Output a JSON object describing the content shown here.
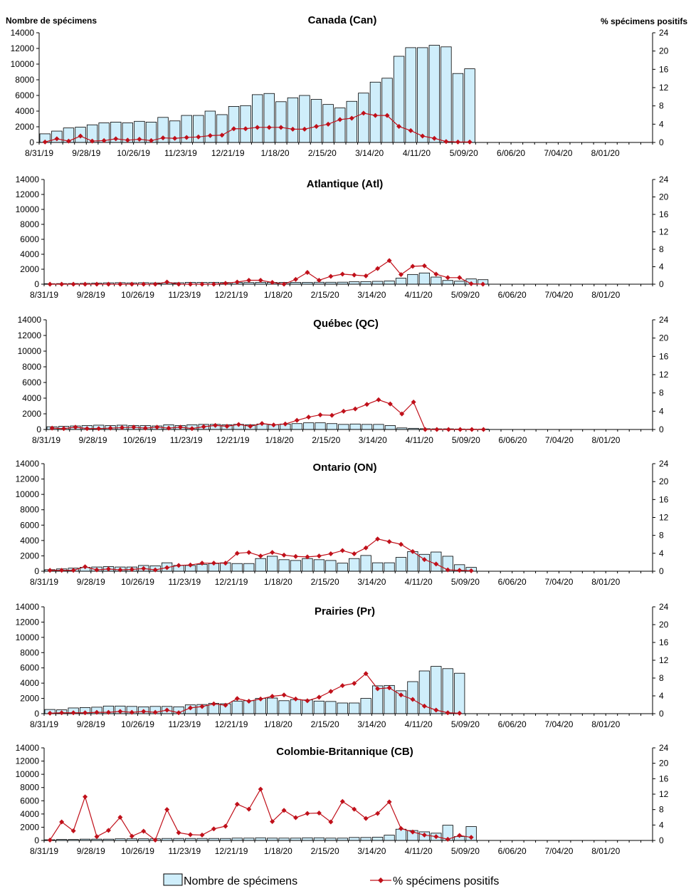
{
  "figure": {
    "left_axis_label": "Nombre de spécimens",
    "right_axis_label": "% spécimens positifs",
    "legend": {
      "bars": "Nombre de spécimens",
      "line": "% spécimens positifs"
    },
    "colors": {
      "bar_fill": "#cfeefb",
      "bar_stroke": "#000000",
      "line": "#c0101a",
      "axis": "#000000"
    }
  },
  "chart_data": [
    {
      "type": "bar",
      "title": "Canada (Can)",
      "x_tick_labels": [
        "8/31/19",
        "9/28/19",
        "10/26/19",
        "11/23/19",
        "12/21/19",
        "1/18/20",
        "2/15/20",
        "3/14/20",
        "4/11/20",
        "5/09/20",
        "6/06/20",
        "7/04/20",
        "8/01/20"
      ],
      "ylim": [
        0,
        14000
      ],
      "y_ticks": [
        0,
        2000,
        4000,
        6000,
        8000,
        10000,
        12000,
        14000
      ],
      "y2lim": [
        0,
        24
      ],
      "y2_ticks": [
        0,
        4,
        8,
        12,
        16,
        20,
        24
      ],
      "series": [
        {
          "name": "Nombre de spécimens",
          "values": [
            1100,
            1450,
            1850,
            1950,
            2250,
            2500,
            2600,
            2500,
            2700,
            2600,
            3200,
            2750,
            3450,
            3450,
            4000,
            3550,
            4600,
            4700,
            6100,
            6250,
            5200,
            5700,
            6000,
            5500,
            4850,
            4400,
            5250,
            6300,
            7700,
            8200,
            11000,
            12100,
            12100,
            12400,
            12200,
            8800,
            9400
          ]
        },
        {
          "name": "% spécimens positifs",
          "values": [
            0.1,
            0.8,
            0.3,
            1.4,
            0.3,
            0.4,
            0.8,
            0.5,
            0.7,
            0.4,
            1.0,
            0.9,
            1.1,
            1.2,
            1.5,
            1.6,
            3.0,
            3.0,
            3.3,
            3.3,
            3.3,
            2.9,
            2.9,
            3.5,
            4.0,
            5.0,
            5.3,
            6.4,
            5.9,
            5.9,
            3.5,
            2.6,
            1.4,
            0.9,
            0.2,
            0.1,
            0.1
          ]
        }
      ]
    },
    {
      "type": "bar",
      "title": "Atlantique (Atl)",
      "x_tick_labels": [
        "8/31/19",
        "9/28/19",
        "10/26/19",
        "11/23/19",
        "12/21/19",
        "1/18/20",
        "2/15/20",
        "3/14/20",
        "4/11/20",
        "5/09/20",
        "6/06/20",
        "7/04/20",
        "8/01/20"
      ],
      "ylim": [
        0,
        14000
      ],
      "y_ticks": [
        0,
        2000,
        4000,
        6000,
        8000,
        10000,
        12000,
        14000
      ],
      "y2lim": [
        0,
        24
      ],
      "y2_ticks": [
        0,
        4,
        8,
        12,
        16,
        20,
        24
      ],
      "series": [
        {
          "name": "Nombre de spécimens",
          "values": [
            60,
            80,
            90,
            110,
            150,
            180,
            200,
            170,
            200,
            170,
            210,
            190,
            250,
            230,
            250,
            220,
            250,
            220,
            250,
            230,
            240,
            250,
            250,
            260,
            260,
            270,
            320,
            350,
            380,
            430,
            800,
            1300,
            1500,
            950,
            500,
            400,
            700,
            600
          ]
        },
        {
          "name": "% spécimens positifs",
          "values": [
            0,
            0,
            0,
            0,
            0,
            0,
            0,
            0,
            0,
            0,
            0.5,
            0,
            0,
            0,
            0,
            0.2,
            0.5,
            0.9,
            0.9,
            0.4,
            0,
            1.1,
            2.7,
            0.9,
            1.8,
            2.3,
            2.1,
            1.9,
            3.6,
            5.4,
            2.2,
            4.1,
            4.2,
            2.3,
            1.5,
            1.5,
            0.1,
            0
          ]
        }
      ]
    },
    {
      "type": "bar",
      "title": "Québec (QC)",
      "x_tick_labels": [
        "8/31/19",
        "9/28/19",
        "10/26/19",
        "11/23/19",
        "12/21/19",
        "1/18/20",
        "2/15/20",
        "3/14/20",
        "4/11/20",
        "5/09/20",
        "6/06/20",
        "7/04/20",
        "8/01/20"
      ],
      "ylim": [
        0,
        14000
      ],
      "y_ticks": [
        0,
        2000,
        4000,
        6000,
        8000,
        10000,
        12000,
        14000
      ],
      "y2lim": [
        0,
        24
      ],
      "y2_ticks": [
        0,
        4,
        8,
        12,
        16,
        20,
        24
      ],
      "series": [
        {
          "name": "Nombre de spécimens",
          "values": [
            350,
            400,
            450,
            500,
            550,
            500,
            550,
            500,
            500,
            450,
            600,
            500,
            600,
            650,
            650,
            600,
            650,
            600,
            700,
            600,
            700,
            750,
            850,
            850,
            750,
            650,
            700,
            650,
            650,
            500,
            200,
            150,
            100,
            80,
            80,
            60,
            50,
            50
          ]
        },
        {
          "name": "% spécimens positifs",
          "values": [
            0.3,
            0.2,
            0.5,
            0.2,
            0.2,
            0.3,
            0.4,
            0.5,
            0.3,
            0.5,
            0.3,
            0.5,
            0.2,
            0.6,
            0.9,
            0.7,
            1.1,
            0.7,
            1.3,
            1.0,
            1.2,
            2.0,
            2.7,
            3.2,
            3.1,
            4.0,
            4.5,
            5.5,
            6.5,
            5.6,
            3.4,
            6.0,
            0,
            0,
            0,
            0,
            0,
            0
          ]
        }
      ]
    },
    {
      "type": "bar",
      "title": "Ontario (ON)",
      "x_tick_labels": [
        "8/31/19",
        "9/28/19",
        "10/26/19",
        "11/23/19",
        "12/21/19",
        "1/18/20",
        "2/15/20",
        "3/14/20",
        "4/11/20",
        "5/09/20",
        "6/06/20",
        "7/04/20",
        "8/01/20"
      ],
      "ylim": [
        0,
        14000
      ],
      "y_ticks": [
        0,
        2000,
        4000,
        6000,
        8000,
        10000,
        12000,
        14000
      ],
      "y2lim": [
        0,
        24
      ],
      "y2_ticks": [
        0,
        4,
        8,
        12,
        16,
        20,
        24
      ],
      "series": [
        {
          "name": "Nombre de spécimens",
          "values": [
            200,
            300,
            400,
            500,
            550,
            600,
            550,
            550,
            750,
            700,
            1100,
            750,
            750,
            900,
            1000,
            1100,
            1000,
            1000,
            1650,
            1950,
            1500,
            1400,
            1650,
            1500,
            1400,
            1050,
            1650,
            2050,
            1100,
            1100,
            1800,
            2550,
            2200,
            2500,
            1950,
            850,
            500
          ]
        },
        {
          "name": "% spécimens positifs",
          "values": [
            0.2,
            0.2,
            0.2,
            1.0,
            0.3,
            0.5,
            0.3,
            0.4,
            0.6,
            0.3,
            0.8,
            1.3,
            1.4,
            1.8,
            1.8,
            1.8,
            4.0,
            4.2,
            3.4,
            4.2,
            3.6,
            3.3,
            3.2,
            3.4,
            3.9,
            4.6,
            3.9,
            5.2,
            7.2,
            6.6,
            6.0,
            4.4,
            2.6,
            1.6,
            0.3,
            0.2,
            0.1
          ]
        }
      ]
    },
    {
      "type": "bar",
      "title": "Prairies (Pr)",
      "x_tick_labels": [
        "8/31/19",
        "9/28/19",
        "10/26/19",
        "11/23/19",
        "12/21/19",
        "1/18/20",
        "2/15/20",
        "3/14/20",
        "4/11/20",
        "5/09/20",
        "6/06/20",
        "7/04/20",
        "8/01/20"
      ],
      "ylim": [
        0,
        14000
      ],
      "y_ticks": [
        0,
        2000,
        4000,
        6000,
        8000,
        10000,
        12000,
        14000
      ],
      "y2lim": [
        0,
        24
      ],
      "y2_ticks": [
        0,
        4,
        8,
        12,
        16,
        20,
        24
      ],
      "series": [
        {
          "name": "Nombre de spécimens",
          "values": [
            550,
            500,
            750,
            800,
            850,
            1000,
            1000,
            950,
            900,
            950,
            950,
            900,
            1150,
            1200,
            1350,
            1300,
            1650,
            1700,
            2000,
            2050,
            1700,
            1850,
            1800,
            1650,
            1600,
            1400,
            1400,
            2000,
            3650,
            3700,
            3000,
            4200,
            5600,
            6200,
            5900,
            5300
          ]
        },
        {
          "name": "% spécimens positifs",
          "values": [
            0.1,
            0.2,
            0.2,
            0.2,
            0.3,
            0.3,
            0.5,
            0.3,
            0.5,
            0.3,
            0.8,
            0.2,
            1.3,
            1.6,
            2.2,
            1.9,
            3.4,
            2.8,
            3.3,
            3.9,
            4.2,
            3.3,
            2.9,
            3.7,
            5.0,
            6.3,
            6.8,
            9.0,
            5.6,
            5.8,
            4.2,
            3.2,
            1.7,
            0.8,
            0.2,
            0.1
          ]
        }
      ]
    },
    {
      "type": "bar",
      "title": "Colombie-Britannique (CB)",
      "x_tick_labels": [
        "8/31/19",
        "9/28/19",
        "10/26/19",
        "11/23/19",
        "12/21/19",
        "1/18/20",
        "2/15/20",
        "3/14/20",
        "4/11/20",
        "5/09/20",
        "6/06/20",
        "7/04/20",
        "8/01/20"
      ],
      "ylim": [
        0,
        14000
      ],
      "y_ticks": [
        0,
        2000,
        4000,
        6000,
        8000,
        10000,
        12000,
        14000
      ],
      "y2lim": [
        0,
        24
      ],
      "y2_ticks": [
        0,
        4,
        8,
        12,
        16,
        20,
        24
      ],
      "series": [
        {
          "name": "Nombre de spécimens",
          "values": [
            100,
            150,
            150,
            200,
            200,
            200,
            250,
            250,
            250,
            250,
            300,
            300,
            300,
            300,
            300,
            300,
            350,
            350,
            400,
            350,
            350,
            350,
            400,
            400,
            350,
            350,
            450,
            450,
            500,
            800,
            1700,
            1500,
            1300,
            1100,
            2300,
            600,
            2100
          ]
        },
        {
          "name": "% spécimens positifs",
          "values": [
            0.1,
            4.8,
            2.5,
            11.3,
            1.0,
            2.6,
            6.0,
            1.1,
            2.4,
            0.1,
            8.0,
            2.0,
            1.5,
            1.4,
            3.0,
            3.7,
            9.4,
            8.1,
            13.3,
            4.9,
            7.8,
            5.9,
            7.0,
            7.1,
            4.8,
            10.1,
            8.1,
            5.7,
            7.0,
            10.0,
            3.1,
            2.2,
            1.4,
            1.0,
            0.3,
            1.3,
            0.8
          ]
        }
      ]
    }
  ]
}
